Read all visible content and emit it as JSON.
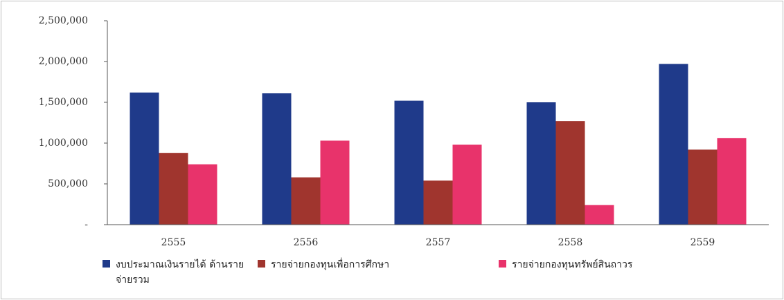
{
  "chart_data": {
    "type": "bar",
    "categories": [
      "2555",
      "2556",
      "2557",
      "2558",
      "2559"
    ],
    "series": [
      {
        "name": "งบประมาณเงินรายได้ ด้านรายจ่ายรวม",
        "color": "#1f3a8a",
        "values": [
          1620000,
          1610000,
          1520000,
          1500000,
          1970000
        ]
      },
      {
        "name": "รายจ่ายกองทุนเพื่อการศึกษา",
        "color": "#a0352e",
        "values": [
          880000,
          580000,
          540000,
          1270000,
          920000
        ]
      },
      {
        "name": "รายจ่ายกองทุนทรัพย์สินถาวร",
        "color": "#e8336b",
        "values": [
          740000,
          1030000,
          980000,
          240000,
          1060000
        ]
      }
    ],
    "ylim": [
      0,
      2500000
    ],
    "yticks": [
      {
        "value": 0,
        "label": "-"
      },
      {
        "value": 500000,
        "label": "500,000"
      },
      {
        "value": 1000000,
        "label": "1,000,000"
      },
      {
        "value": 1500000,
        "label": "1,500,000"
      },
      {
        "value": 2000000,
        "label": "2,000,000"
      },
      {
        "value": 2500000,
        "label": "2,500,000"
      }
    ],
    "legend": "bottom"
  }
}
